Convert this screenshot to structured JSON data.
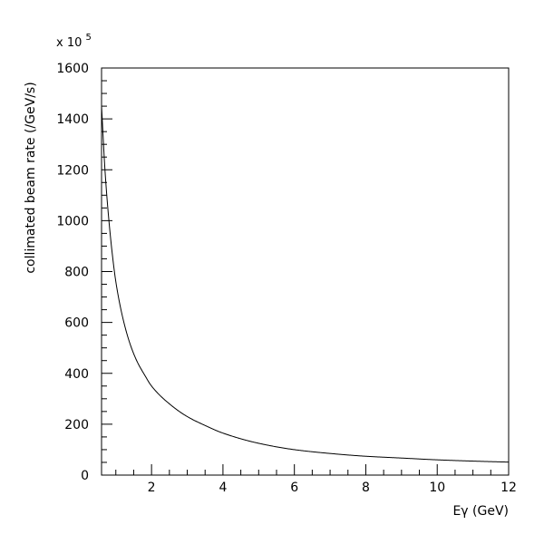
{
  "chart_data": {
    "type": "line",
    "title": "",
    "xlabel": "Eγ (GeV)",
    "ylabel": "collimated beam rate (/GeV/s)",
    "y_multiplier_base": "x 10",
    "y_multiplier_exponent": "5",
    "xlim": [
      0.6,
      12
    ],
    "ylim": [
      0,
      1600
    ],
    "x_major_ticks": [
      2,
      4,
      6,
      8,
      10,
      12
    ],
    "x_tick_labels": [
      "2",
      "4",
      "6",
      "8",
      "10",
      "12"
    ],
    "y_major_ticks": [
      0,
      200,
      400,
      600,
      800,
      1000,
      1200,
      1400,
      1600
    ],
    "y_tick_labels": [
      "0",
      "200",
      "400",
      "600",
      "800",
      "1000",
      "1200",
      "1400",
      "1600"
    ],
    "grid": false,
    "legend": "none",
    "series": [
      {
        "x": [
          0.6,
          0.7,
          0.8,
          0.9,
          1.0,
          1.2,
          1.4,
          1.6,
          1.8,
          2.0,
          2.5,
          3.0,
          3.5,
          4.0,
          5.0,
          6.0,
          7.0,
          8.0,
          9.0,
          10.0,
          11.0,
          12.0
        ],
        "y": [
          1450,
          1190,
          1010,
          870,
          760,
          615,
          515,
          445,
          395,
          350,
          280,
          230,
          195,
          165,
          125,
          100,
          85,
          74,
          67,
          60,
          55,
          51
        ]
      }
    ]
  }
}
